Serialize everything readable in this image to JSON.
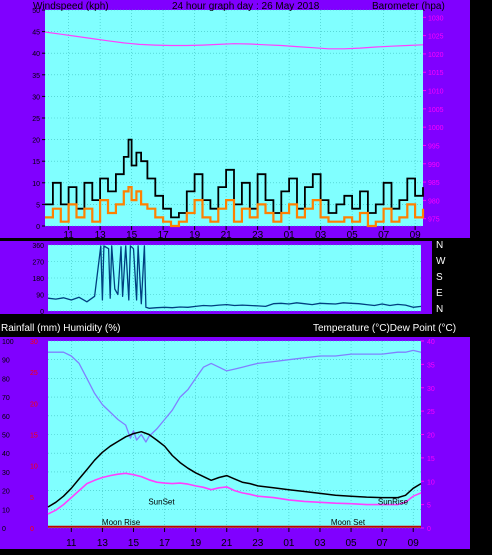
{
  "header": {
    "left_label": "Windspeed (kph)",
    "center_label": "24 hour graph day : 26 May 2018",
    "right_label": "Barometer (hpa)"
  },
  "colors": {
    "frame": "#8000ff",
    "plot_bg": "#80ffff",
    "wind_gust": "#000000",
    "wind_avg": "#ff8000",
    "barometer": "#ff40ff",
    "direction": "#004080",
    "temperature": "#000000",
    "dew_point": "#ff40ff",
    "humidity": "#8080ff",
    "rainfall": "#c00000",
    "axis_text": "#000000",
    "right_axis_text": "#ff00ff"
  },
  "x_ticks": [
    "11",
    "13",
    "15",
    "17",
    "19",
    "21",
    "23",
    "01",
    "03",
    "05",
    "07",
    "09"
  ],
  "chart_data": [
    {
      "type": "line",
      "name": "wind-barometer",
      "y_left_ticks": [
        "0",
        "5",
        "10",
        "15",
        "20",
        "25",
        "30",
        "35",
        "40",
        "45",
        "50"
      ],
      "y_right_ticks": [
        "975",
        "980",
        "985",
        "990",
        "995",
        "1000",
        "1005",
        "1010",
        "1015",
        "1020",
        "1025",
        "1030"
      ],
      "ylim_left": [
        0,
        50
      ],
      "ylim_right": [
        973,
        1032
      ],
      "x_hours": [
        9.5,
        33.5
      ],
      "series": [
        {
          "key": "barometer",
          "axis": "right",
          "x": [
            9.5,
            10.5,
            11.5,
            12.5,
            13.5,
            14.5,
            15.5,
            16.5,
            17.5,
            18.5,
            19.5,
            20.5,
            21.5,
            22.5,
            23.5,
            24.5,
            25.5,
            26.5,
            27.5,
            28.5,
            29.5,
            30.5,
            31.5,
            32.5,
            33.5
          ],
          "y": [
            1026.0,
            1025.4,
            1024.8,
            1024.2,
            1023.6,
            1023.0,
            1022.6,
            1022.4,
            1022.3,
            1022.3,
            1022.4,
            1022.6,
            1022.8,
            1022.7,
            1022.5,
            1022.3,
            1022.0,
            1021.7,
            1021.4,
            1021.4,
            1021.6,
            1021.9,
            1022.1,
            1022.3,
            1022.5
          ]
        },
        {
          "key": "wind_gust",
          "axis": "left",
          "x": [
            9.5,
            10.0,
            10.5,
            11.0,
            11.5,
            12.0,
            12.5,
            13.0,
            13.5,
            14.0,
            14.5,
            14.8,
            15.0,
            15.3,
            15.6,
            16.0,
            16.5,
            17.0,
            17.5,
            18.0,
            18.5,
            19.0,
            19.5,
            20.0,
            20.5,
            21.0,
            21.5,
            22.0,
            22.5,
            23.0,
            23.5,
            24.0,
            24.5,
            25.0,
            25.5,
            26.0,
            26.5,
            27.0,
            27.5,
            28.0,
            28.5,
            29.0,
            29.5,
            30.0,
            30.5,
            31.0,
            31.5,
            32.0,
            32.5,
            33.0,
            33.5
          ],
          "y": [
            5,
            10,
            5,
            9,
            4,
            10,
            6,
            11,
            8,
            12,
            16,
            20,
            14,
            17,
            15,
            11,
            7,
            4,
            2,
            3,
            8,
            12,
            6,
            4,
            9,
            13,
            5,
            10,
            4,
            12,
            6,
            3,
            8,
            11,
            4,
            9,
            12,
            6,
            3,
            5,
            7,
            4,
            8,
            3,
            5,
            10,
            4,
            6,
            11,
            7,
            9
          ]
        },
        {
          "key": "wind_avg",
          "axis": "left",
          "x": [
            9.5,
            10.0,
            10.5,
            11.0,
            11.5,
            12.0,
            12.5,
            13.0,
            13.5,
            14.0,
            14.5,
            14.8,
            15.0,
            15.3,
            15.6,
            16.0,
            16.5,
            17.0,
            17.5,
            18.0,
            18.5,
            19.0,
            19.5,
            20.0,
            20.5,
            21.0,
            21.5,
            22.0,
            22.5,
            23.0,
            23.5,
            24.0,
            24.5,
            25.0,
            25.5,
            26.0,
            26.5,
            27.0,
            27.5,
            28.0,
            28.5,
            29.0,
            29.5,
            30.0,
            30.5,
            31.0,
            31.5,
            32.0,
            32.5,
            33.0,
            33.5
          ],
          "y": [
            2,
            4,
            1,
            5,
            2,
            4,
            1,
            6,
            3,
            5,
            8,
            9,
            6,
            8,
            5,
            4,
            2,
            1,
            0,
            1,
            3,
            6,
            2,
            1,
            4,
            6,
            1,
            4,
            2,
            5,
            3,
            1,
            3,
            5,
            2,
            4,
            6,
            2,
            1,
            1,
            2,
            1,
            3,
            0,
            1,
            4,
            1,
            2,
            5,
            2,
            4
          ]
        }
      ]
    },
    {
      "type": "line",
      "name": "wind-direction",
      "right_labels": [
        "N",
        "W",
        "S",
        "E",
        "N"
      ],
      "y_left_ticks": [
        "0",
        "90",
        "180",
        "270",
        "360"
      ],
      "ylim": [
        0,
        360
      ],
      "series": [
        {
          "key": "direction",
          "x": [
            9.5,
            10.0,
            10.5,
            11.0,
            11.5,
            12.0,
            12.5,
            12.9,
            13.0,
            13.1,
            13.4,
            13.5,
            13.6,
            13.8,
            14.0,
            14.2,
            14.3,
            14.5,
            14.7,
            14.8,
            15.0,
            15.2,
            15.3,
            15.5,
            15.7,
            15.8,
            16.0,
            16.5,
            17.0,
            17.5,
            18.0,
            18.5,
            19.0,
            19.5,
            20.0,
            20.5,
            21.0,
            21.5,
            22.0,
            22.5,
            23.0,
            23.5,
            24.0,
            24.5,
            25.0,
            25.5,
            26.0,
            26.5,
            27.0,
            27.5,
            28.0,
            28.5,
            29.0,
            29.5,
            30.0,
            30.5,
            31.0,
            31.5,
            32.0,
            32.5,
            33.0,
            33.5
          ],
          "y": [
            70,
            65,
            72,
            60,
            75,
            50,
            80,
            355,
            60,
            355,
            340,
            70,
            355,
            120,
            90,
            350,
            80,
            355,
            60,
            355,
            340,
            60,
            355,
            40,
            355,
            20,
            15,
            18,
            20,
            18,
            22,
            20,
            25,
            30,
            28,
            32,
            35,
            30,
            32,
            30,
            28,
            25,
            40,
            42,
            38,
            45,
            40,
            35,
            42,
            40,
            38,
            45,
            42,
            40,
            35,
            30,
            38,
            30,
            36,
            32,
            20,
            25
          ]
        }
      ]
    },
    {
      "type": "line",
      "name": "rain-humidity-temperature",
      "left_title": "Rainfall (mm)  Humidity (%)",
      "right_title": "Temperature (°C)Dew Point (°C)",
      "humidity_ticks": [
        "0",
        "10",
        "20",
        "30",
        "40",
        "50",
        "60",
        "70",
        "80",
        "90",
        "100"
      ],
      "rain_ticks": [
        "0",
        "5",
        "10",
        "15",
        "20",
        "25",
        "30"
      ],
      "temp_ticks": [
        "0",
        "5",
        "10",
        "15",
        "20",
        "25",
        "30",
        "35",
        "40"
      ],
      "ylim_humidity": [
        0,
        100
      ],
      "ylim_rain": [
        0,
        30
      ],
      "ylim_temp": [
        0,
        40
      ],
      "annotations": [
        {
          "label": "SunSet",
          "hour": 16.8,
          "level": 5.0
        },
        {
          "label": "Moon Rise",
          "hour": 14.2,
          "level": 0.6
        },
        {
          "label": "Moon Set",
          "hour": 28.8,
          "level": 0.6
        },
        {
          "label": "SunRise",
          "hour": 31.7,
          "level": 5.0
        }
      ],
      "series": [
        {
          "key": "humidity",
          "axis": "humidity",
          "x": [
            9.5,
            10.0,
            10.5,
            11.0,
            11.5,
            12.0,
            12.5,
            13.0,
            13.5,
            14.0,
            14.5,
            14.8,
            15.0,
            15.2,
            15.5,
            15.8,
            16.0,
            16.5,
            17.0,
            17.5,
            18.0,
            18.5,
            19.0,
            19.5,
            20.0,
            20.5,
            21.0,
            21.5,
            22.0,
            22.5,
            23.0,
            24.0,
            25.0,
            26.0,
            27.0,
            28.0,
            29.0,
            30.0,
            31.0,
            32.0,
            32.5,
            33.0,
            33.5
          ],
          "y": [
            94,
            94,
            94,
            92,
            88,
            80,
            72,
            66,
            62,
            58,
            55,
            48,
            52,
            47,
            50,
            46,
            49,
            53,
            58,
            63,
            70,
            74,
            80,
            86,
            88,
            86,
            84,
            85,
            86,
            87,
            88,
            89,
            90,
            91,
            92,
            92,
            93,
            93,
            93,
            94,
            94,
            95,
            94
          ]
        },
        {
          "key": "temperature",
          "axis": "temp",
          "x": [
            9.5,
            10.0,
            10.5,
            11.0,
            11.5,
            12.0,
            12.5,
            13.0,
            13.5,
            14.0,
            14.5,
            15.0,
            15.5,
            16.0,
            16.5,
            17.0,
            17.5,
            18.0,
            18.5,
            19.0,
            19.5,
            20.0,
            20.5,
            21.0,
            21.5,
            22.0,
            22.5,
            23.0,
            24.0,
            25.0,
            26.0,
            27.0,
            28.0,
            29.0,
            30.0,
            31.0,
            32.0,
            32.5,
            33.0,
            33.5
          ],
          "y": [
            4.5,
            5.5,
            6.8,
            8.5,
            10.5,
            12.5,
            14.5,
            16.2,
            17.5,
            18.5,
            19.5,
            20.2,
            20.6,
            20.0,
            18.8,
            17.5,
            15.5,
            14.0,
            12.8,
            11.8,
            11.0,
            10.2,
            10.8,
            11.2,
            10.5,
            9.8,
            9.5,
            9.0,
            8.6,
            8.2,
            7.8,
            7.4,
            7.0,
            6.8,
            6.6,
            6.5,
            6.5,
            7.0,
            8.5,
            9.5
          ]
        },
        {
          "key": "dew_point",
          "axis": "temp",
          "x": [
            9.5,
            10.0,
            10.5,
            11.0,
            11.5,
            12.0,
            12.5,
            13.0,
            13.5,
            14.0,
            14.5,
            15.0,
            15.5,
            16.0,
            16.5,
            17.0,
            17.5,
            18.0,
            18.5,
            19.0,
            19.5,
            20.0,
            20.5,
            21.0,
            21.5,
            22.0,
            22.5,
            23.0,
            24.0,
            25.0,
            26.0,
            27.0,
            28.0,
            29.0,
            30.0,
            31.0,
            32.0,
            32.5,
            33.0,
            33.5
          ],
          "y": [
            3.0,
            3.8,
            5.0,
            6.5,
            8.0,
            9.5,
            10.2,
            10.8,
            11.2,
            11.5,
            11.7,
            11.4,
            11.0,
            10.3,
            9.8,
            9.6,
            9.5,
            9.6,
            9.4,
            9.0,
            8.7,
            8.2,
            8.6,
            8.8,
            8.0,
            7.5,
            7.2,
            6.8,
            6.5,
            6.0,
            5.7,
            5.5,
            5.3,
            5.2,
            5.0,
            5.0,
            5.0,
            5.5,
            6.8,
            7.5
          ]
        },
        {
          "key": "rainfall",
          "axis": "rain",
          "x": [
            9.5,
            33.5
          ],
          "y": [
            0.2,
            0.2
          ]
        }
      ]
    }
  ]
}
